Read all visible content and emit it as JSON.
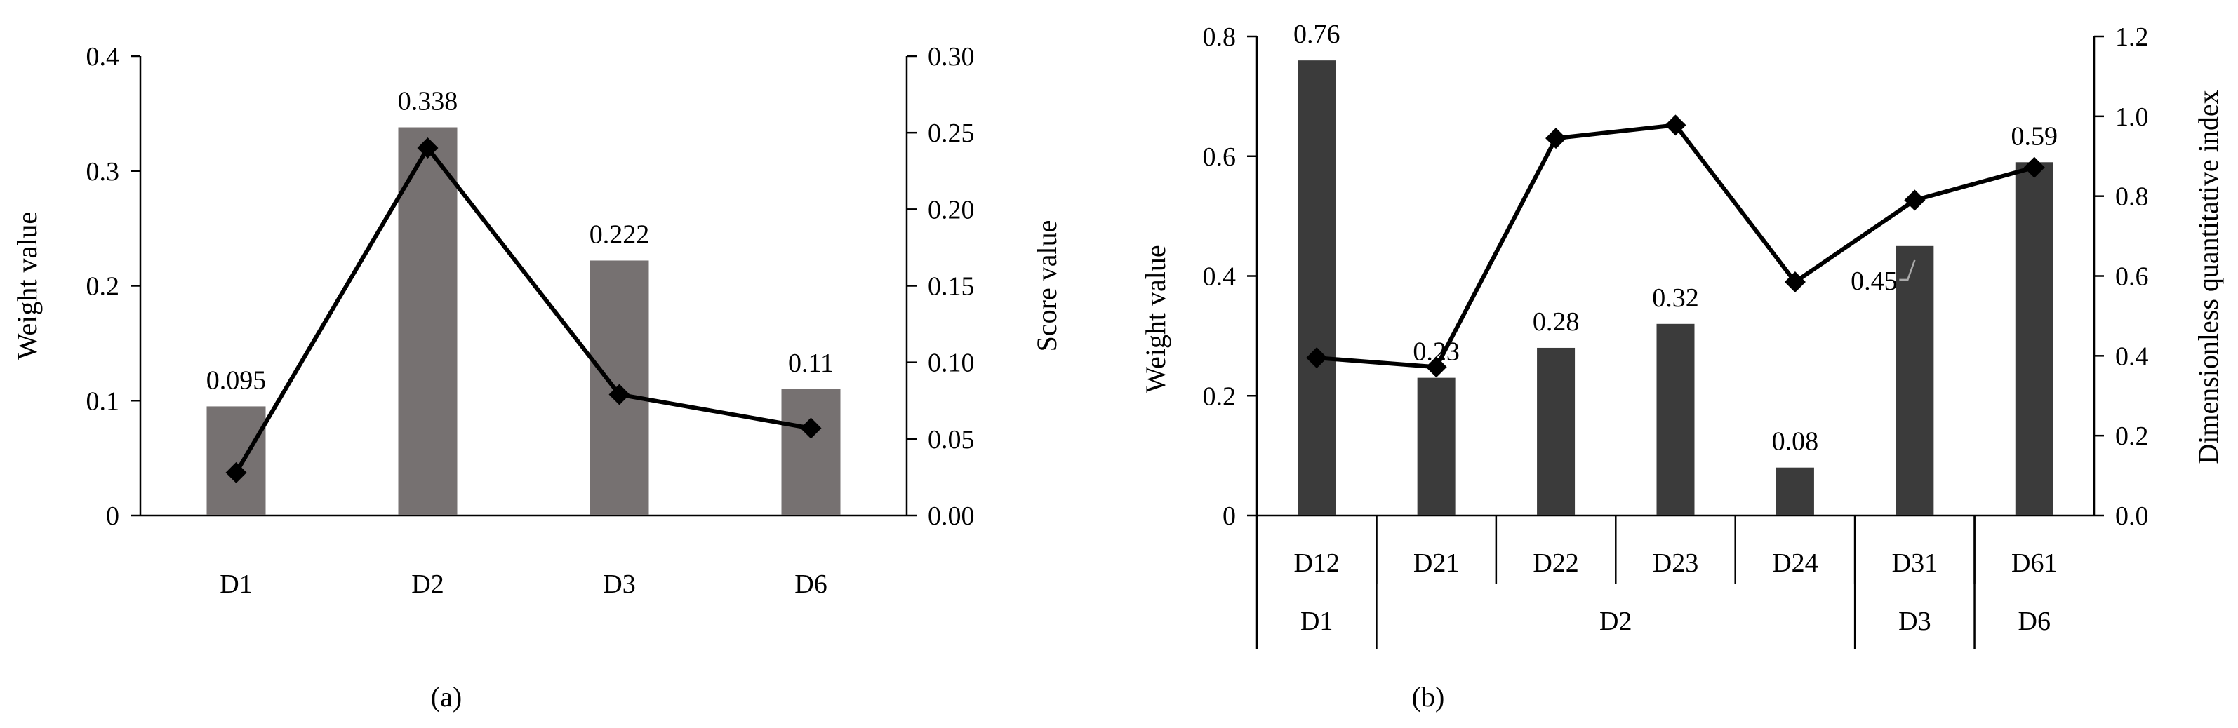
{
  "chart_data": [
    {
      "id": "a",
      "type": "bar+line",
      "caption": "(a)",
      "categories": [
        "D1",
        "D2",
        "D3",
        "D6"
      ],
      "bar_series": {
        "name": "Weight value",
        "values": [
          0.095,
          0.338,
          0.222,
          0.11
        ],
        "labels": [
          "0.095",
          "0.338",
          "0.222",
          "0.11"
        ],
        "color": "#767171"
      },
      "line_series": {
        "name": "Score value",
        "values": [
          0.028,
          0.24,
          0.079,
          0.057
        ],
        "color": "#000000"
      },
      "ylabel_left": "Weight value",
      "ylabel_right": "Score value",
      "ylim_left": [
        0,
        0.4
      ],
      "ylim_right": [
        0,
        0.3
      ],
      "yticks_left": [
        "0",
        "0.1",
        "0.2",
        "0.3",
        "0.4"
      ],
      "yticks_right": [
        "0.00",
        "0.05",
        "0.10",
        "0.15",
        "0.20",
        "0.25",
        "0.30"
      ]
    },
    {
      "id": "b",
      "type": "bar+line",
      "caption": "(b)",
      "categories": [
        "D12",
        "D21",
        "D22",
        "D23",
        "D24",
        "D31",
        "D61"
      ],
      "groups": [
        {
          "name": "D1",
          "span": 1
        },
        {
          "name": "D2",
          "span": 4
        },
        {
          "name": "D3",
          "span": 1
        },
        {
          "name": "D6",
          "span": 1
        }
      ],
      "bar_series": {
        "name": "Weight value",
        "values": [
          0.76,
          0.23,
          0.28,
          0.32,
          0.08,
          0.45,
          0.59
        ],
        "labels": [
          "0.76",
          "0.23",
          "0.28",
          "0.32",
          "0.08",
          "0.45",
          "0.59"
        ],
        "color": "#3b3b3b"
      },
      "line_series": {
        "name": "Dimensionless quantitative index",
        "values": [
          0.395,
          0.372,
          0.945,
          0.978,
          0.585,
          0.79,
          0.872
        ],
        "color": "#000000"
      },
      "ylabel_left": "Weight value",
      "ylabel_right": "Dimensionless quantitative index",
      "ylim_left": [
        0,
        0.8
      ],
      "ylim_right": [
        0,
        1.2
      ],
      "yticks_left": [
        "0",
        "0.2",
        "0.4",
        "0.6",
        "0.8"
      ],
      "yticks_right": [
        "0.0",
        "0.2",
        "0.4",
        "0.6",
        "0.8",
        "1.0",
        "1.2"
      ]
    }
  ]
}
